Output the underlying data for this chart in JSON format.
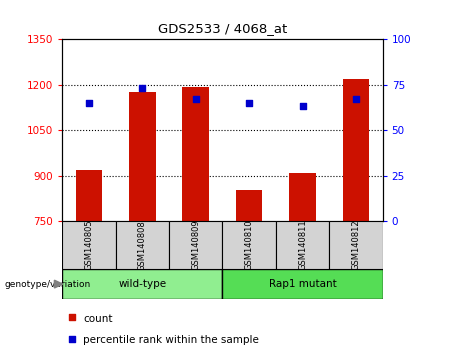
{
  "title": "GDS2533 / 4068_at",
  "samples": [
    "GSM140805",
    "GSM140808",
    "GSM140809",
    "GSM140810",
    "GSM140811",
    "GSM140812"
  ],
  "count_values": [
    920,
    1175,
    1193,
    852,
    910,
    1218
  ],
  "percentile_values": [
    65,
    73,
    67,
    65,
    63,
    67
  ],
  "ylim_left": [
    750,
    1350
  ],
  "ylim_right": [
    0,
    100
  ],
  "yticks_left": [
    750,
    900,
    1050,
    1200,
    1350
  ],
  "yticks_right": [
    0,
    25,
    50,
    75,
    100
  ],
  "bar_color": "#cc1100",
  "dot_color": "#0000cc",
  "groups": [
    {
      "label": "wild-type",
      "indices": [
        0,
        1,
        2
      ],
      "color": "#90ee90"
    },
    {
      "label": "Rap1 mutant",
      "indices": [
        3,
        4,
        5
      ],
      "color": "#55dd55"
    }
  ],
  "group_label": "genotype/variation",
  "legend_count": "count",
  "legend_percentile": "percentile rank within the sample",
  "bar_width": 0.5
}
